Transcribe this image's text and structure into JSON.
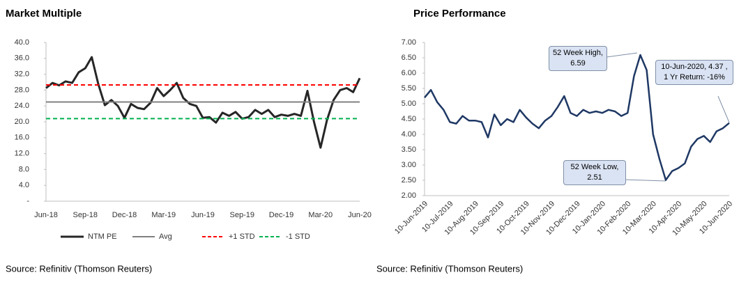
{
  "chart_data": [
    {
      "type": "line",
      "title": "Market Multiple",
      "categories": [
        "Jun-18",
        null,
        null,
        null,
        null,
        null,
        "Sep-18",
        null,
        null,
        null,
        null,
        null,
        "Dec-18",
        null,
        null,
        null,
        null,
        null,
        "Mar-19",
        null,
        null,
        null,
        null,
        null,
        "Jun-19",
        null,
        null,
        null,
        null,
        null,
        "Sep-19",
        null,
        null,
        null,
        null,
        null,
        "Dec-19",
        null,
        null,
        null,
        null,
        null,
        "Mar-20",
        null,
        null,
        null,
        null,
        null,
        "Jun-20"
      ],
      "series": [
        {
          "name": "NTM PE",
          "color": "#262626",
          "line_style": "solid",
          "values": [
            28.5,
            29.8,
            29.2,
            30.2,
            29.8,
            32.5,
            33.5,
            36.3,
            29.5,
            24.2,
            25.5,
            24.0,
            21.0,
            24.5,
            23.5,
            23.2,
            24.8,
            28.5,
            26.5,
            28.0,
            29.8,
            26.0,
            24.5,
            24.0,
            21.0,
            21.2,
            19.8,
            22.3,
            21.5,
            22.5,
            20.8,
            21.2,
            23.0,
            22.0,
            23.0,
            21.2,
            21.8,
            21.5,
            22.0,
            21.5,
            27.8,
            20.0,
            13.5,
            20.5,
            25.5,
            28.0,
            28.5,
            27.5,
            31.0
          ]
        },
        {
          "name": "Avg",
          "color": "#808080",
          "line_style": "solid",
          "values": [
            25.0,
            25.0,
            25.0,
            25.0,
            25.0,
            25.0,
            25.0,
            25.0,
            25.0,
            25.0,
            25.0,
            25.0,
            25.0,
            25.0,
            25.0,
            25.0,
            25.0,
            25.0,
            25.0,
            25.0,
            25.0,
            25.0,
            25.0,
            25.0,
            25.0,
            25.0,
            25.0,
            25.0,
            25.0,
            25.0,
            25.0,
            25.0,
            25.0,
            25.0,
            25.0,
            25.0,
            25.0,
            25.0,
            25.0,
            25.0,
            25.0,
            25.0,
            25.0,
            25.0,
            25.0,
            25.0,
            25.0,
            25.0,
            25.0
          ]
        },
        {
          "name": "+1 STD",
          "color": "#ff0000",
          "line_style": "dashed",
          "values": [
            29.3,
            29.3,
            29.3,
            29.3,
            29.3,
            29.3,
            29.3,
            29.3,
            29.3,
            29.3,
            29.3,
            29.3,
            29.3,
            29.3,
            29.3,
            29.3,
            29.3,
            29.3,
            29.3,
            29.3,
            29.3,
            29.3,
            29.3,
            29.3,
            29.3,
            29.3,
            29.3,
            29.3,
            29.3,
            29.3,
            29.3,
            29.3,
            29.3,
            29.3,
            29.3,
            29.3,
            29.3,
            29.3,
            29.3,
            29.3,
            29.3,
            29.3,
            29.3,
            29.3,
            29.3,
            29.3,
            29.3,
            29.3,
            29.3
          ]
        },
        {
          "name": "-1 STD",
          "color": "#00b050",
          "line_style": "dashed",
          "values": [
            20.8,
            20.8,
            20.8,
            20.8,
            20.8,
            20.8,
            20.8,
            20.8,
            20.8,
            20.8,
            20.8,
            20.8,
            20.8,
            20.8,
            20.8,
            20.8,
            20.8,
            20.8,
            20.8,
            20.8,
            20.8,
            20.8,
            20.8,
            20.8,
            20.8,
            20.8,
            20.8,
            20.8,
            20.8,
            20.8,
            20.8,
            20.8,
            20.8,
            20.8,
            20.8,
            20.8,
            20.8,
            20.8,
            20.8,
            20.8,
            20.8,
            20.8,
            20.8,
            20.8,
            20.8,
            20.8,
            20.8,
            20.8,
            20.8
          ]
        }
      ],
      "ylim": [
        0,
        40
      ],
      "yticks": [
        {
          "value": 0,
          "label": "-"
        },
        {
          "value": 4,
          "label": "4.0"
        },
        {
          "value": 8,
          "label": "8.0"
        },
        {
          "value": 12,
          "label": "12.0"
        },
        {
          "value": 16,
          "label": "16.0"
        },
        {
          "value": 20,
          "label": "20.0"
        },
        {
          "value": 24,
          "label": "24.0"
        },
        {
          "value": 28,
          "label": "28.0"
        },
        {
          "value": 32,
          "label": "32.0"
        },
        {
          "value": 36,
          "label": "36.0"
        },
        {
          "value": 40,
          "label": "40.0"
        }
      ],
      "legend": "bottom",
      "source": "Source: Refinitiv (Thomson Reuters)"
    },
    {
      "type": "line",
      "title": "Price Performance",
      "categories": [
        "10-Jun-2019",
        null,
        null,
        null,
        "10-Jul-2019",
        null,
        null,
        null,
        "10-Aug-2019",
        null,
        null,
        null,
        "10-Sep-2019",
        null,
        null,
        null,
        "10-Oct-2019",
        null,
        null,
        null,
        "10-Nov-2019",
        null,
        null,
        null,
        "10-Dec-2019",
        null,
        null,
        null,
        "10-Jan-2020",
        null,
        null,
        null,
        "10-Feb-2020",
        null,
        null,
        null,
        "10-Mar-2020",
        null,
        null,
        null,
        "10-Apr-2020",
        null,
        null,
        null,
        "10-May-2020",
        null,
        null,
        null,
        "10-Jun-2020"
      ],
      "series": [
        {
          "color": "#1f3864",
          "line_style": "solid",
          "values": [
            5.2,
            5.45,
            5.05,
            4.8,
            4.4,
            4.35,
            4.6,
            4.45,
            4.45,
            4.4,
            3.9,
            4.65,
            4.3,
            4.5,
            4.4,
            4.8,
            4.55,
            4.35,
            4.2,
            4.45,
            4.6,
            4.9,
            5.25,
            4.7,
            4.6,
            4.8,
            4.7,
            4.75,
            4.7,
            4.8,
            4.75,
            4.6,
            4.7,
            5.9,
            6.59,
            6.1,
            4.0,
            3.2,
            2.51,
            2.8,
            2.9,
            3.05,
            3.6,
            3.85,
            3.95,
            3.75,
            4.1,
            4.2,
            4.37
          ]
        }
      ],
      "ylim": [
        2,
        7
      ],
      "yticks": [
        {
          "value": 2,
          "label": "2.00"
        },
        {
          "value": 2.5,
          "label": "2.50"
        },
        {
          "value": 3,
          "label": "3.00"
        },
        {
          "value": 3.5,
          "label": "3.50"
        },
        {
          "value": 4,
          "label": "4.00"
        },
        {
          "value": 4.5,
          "label": "4.50"
        },
        {
          "value": 5,
          "label": "5.00"
        },
        {
          "value": 5.5,
          "label": "5.50"
        },
        {
          "value": 6,
          "label": "6.00"
        },
        {
          "value": 6.5,
          "label": "6.50"
        },
        {
          "value": 7,
          "label": "7.00"
        }
      ],
      "annotations": [
        "52 Week High, 6.59",
        "52 Week Low, 2.51",
        "10-Jun-2020, 4.37 , 1 Yr Return: -16%"
      ],
      "source": "Source: Refinitiv (Thomson Reuters)"
    }
  ]
}
